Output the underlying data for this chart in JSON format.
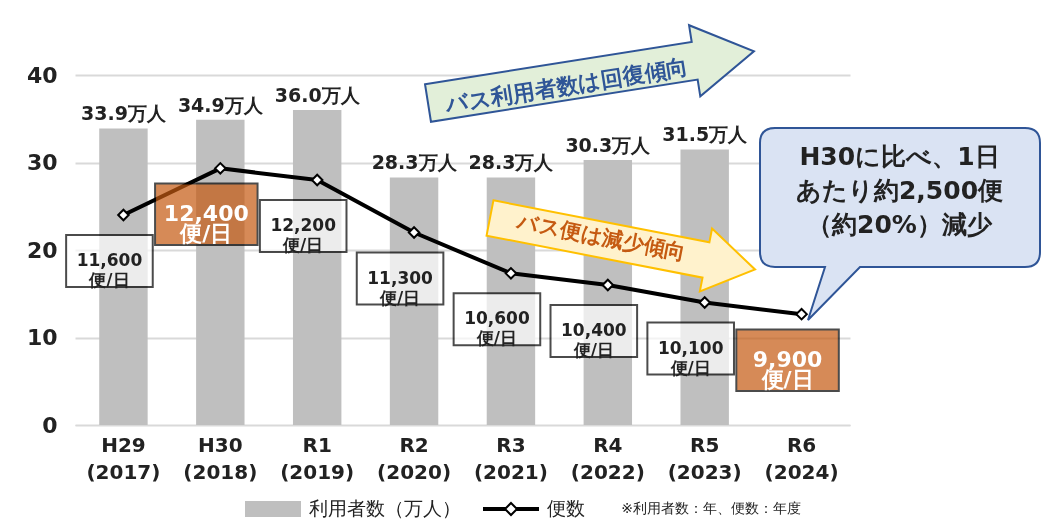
{
  "chart_data": {
    "type": "bar",
    "categories": [
      "H29\n(2017)",
      "H30\n(2018)",
      "R1\n(2019)",
      "R2\n(2020)",
      "R3\n(2021)",
      "R4\n(2022)",
      "R5\n(2023)",
      "R6\n(2024)"
    ],
    "series": [
      {
        "name": "利用者数（万人）",
        "color": "#bfbfbf",
        "values": [
          33.9,
          34.9,
          36.0,
          28.3,
          28.3,
          30.3,
          31.5,
          null
        ],
        "value_labels": [
          "33.9万人",
          "34.9万人",
          "36.0万人",
          "28.3万人",
          "28.3万人",
          "30.3万人",
          "31.5万人",
          null
        ]
      },
      {
        "name": "便数",
        "type": "line",
        "axis": "y2",
        "color": "#000000",
        "values": [
          11600,
          12400,
          12200,
          11300,
          10600,
          10400,
          10100,
          9900
        ],
        "value_labels": [
          "11,600\n便/日",
          "12,400\n便/日",
          "12,200\n便/日",
          "11,300\n便/日",
          "10,600\n便/日",
          "10,400\n便/日",
          "10,100\n便/日",
          "9,900\n便/日"
        ]
      }
    ],
    "ylim": [
      0,
      40
    ],
    "yticks": [
      0,
      10,
      20,
      30,
      40
    ],
    "y2lim": [
      8000,
      14000
    ],
    "grid": "y",
    "legend": "bottom",
    "marker": "diamond",
    "line_style": "solid",
    "annotations": [
      "バス利用者数は回復傾向",
      "バス便は減少傾向",
      "H30に比べ、1日あたり約2,500便（約20%）減少",
      "※利用者数：年、便数：年度"
    ]
  }
}
